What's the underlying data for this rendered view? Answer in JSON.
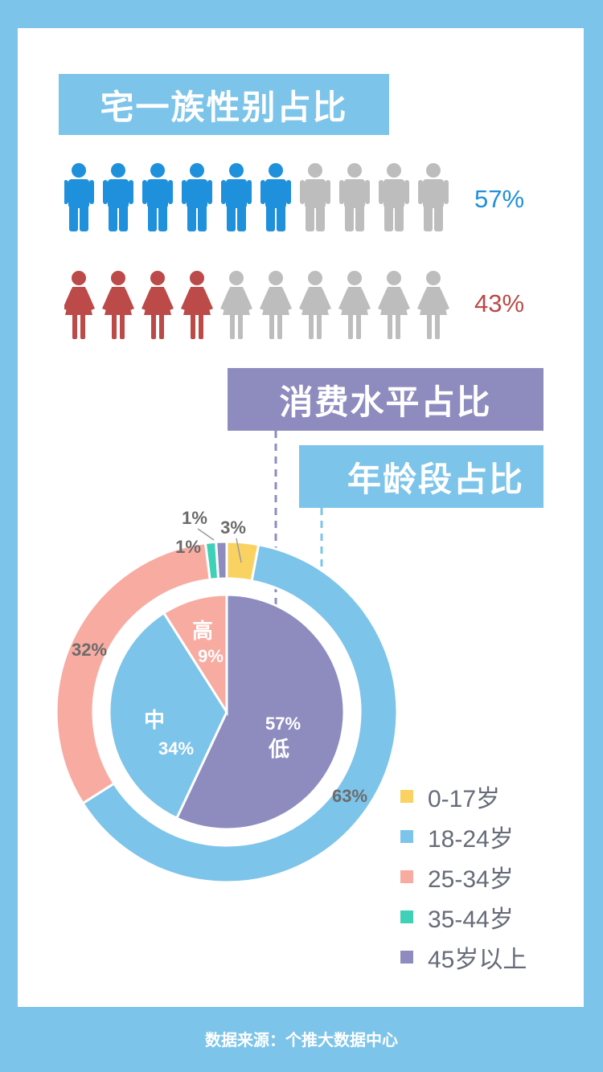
{
  "colors": {
    "background": "#7dc4ea",
    "male": "#1e90dc",
    "female": "#bb4a48",
    "inactive": "#bdbdbd",
    "heading_blue": "#7dc4ea",
    "heading_purple": "#8e8cbf"
  },
  "gender_section": {
    "title": "宅一族性别占比",
    "male": {
      "percent_label": "57%",
      "filled": 6,
      "total": 10
    },
    "female": {
      "percent_label": "43%",
      "filled": 4,
      "total": 10
    }
  },
  "consumption_title": "消费水平占比",
  "age_title": "年龄段占比",
  "chart_data": [
    {
      "type": "pie",
      "title": "年龄段占比",
      "ring": "outer",
      "categories": [
        "0-17岁",
        "18-24岁",
        "25-34岁",
        "35-44岁",
        "45岁以上"
      ],
      "values": [
        3,
        63,
        32,
        1,
        1
      ],
      "labels": [
        "3%",
        "63%",
        "32%",
        "1%",
        "1%"
      ],
      "colors": [
        "#f9d262",
        "#7dc4ea",
        "#f8aba1",
        "#3fd0b8",
        "#8e8cbf"
      ],
      "legend_position": "bottom-right"
    },
    {
      "type": "pie",
      "title": "消费水平占比",
      "ring": "inner",
      "categories": [
        "低",
        "中",
        "高"
      ],
      "values": [
        57,
        34,
        9
      ],
      "labels": [
        "57%",
        "34%",
        "9%"
      ],
      "colors": [
        "#8e8cbf",
        "#7dc4ea",
        "#f8aba1"
      ]
    }
  ],
  "footer": "数据来源：个推大数据中心"
}
